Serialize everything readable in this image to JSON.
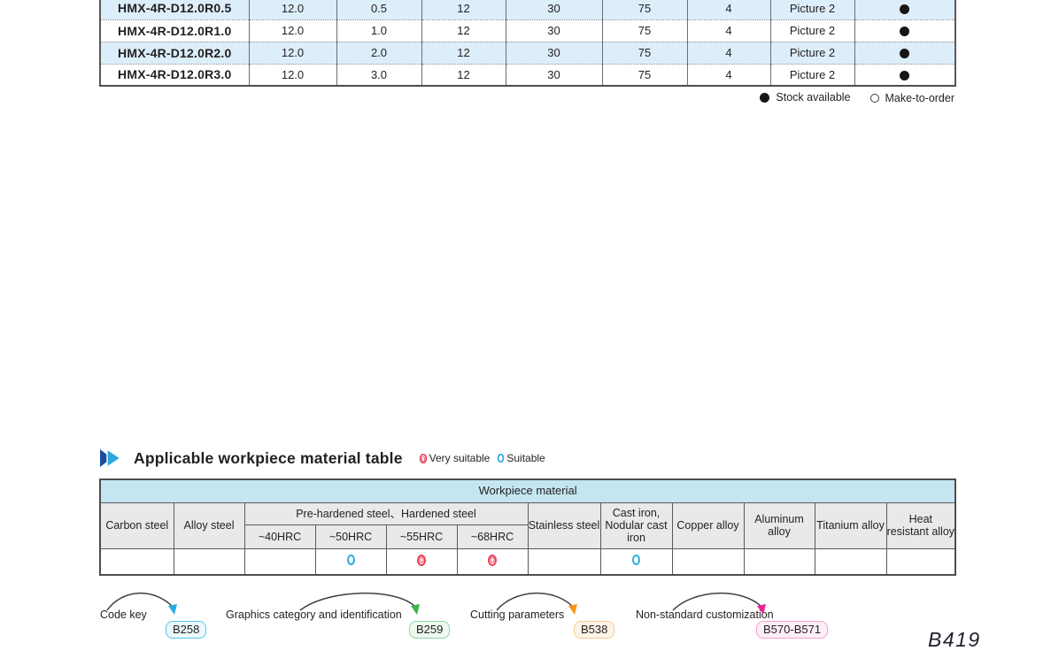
{
  "spec_table": {
    "rows": [
      {
        "model": "HMX-4R-D12.0R0.5",
        "values": [
          "12.0",
          "0.5",
          "12",
          "30",
          "75",
          "4",
          "Picture 2"
        ],
        "stock": "stock-available"
      },
      {
        "model": "HMX-4R-D12.0R1.0",
        "values": [
          "12.0",
          "1.0",
          "12",
          "30",
          "75",
          "4",
          "Picture 2"
        ],
        "stock": "stock-available"
      },
      {
        "model": "HMX-4R-D12.0R2.0",
        "values": [
          "12.0",
          "2.0",
          "12",
          "30",
          "75",
          "4",
          "Picture 2"
        ],
        "stock": "stock-available"
      },
      {
        "model": "HMX-4R-D12.0R3.0",
        "values": [
          "12.0",
          "3.0",
          "12",
          "30",
          "75",
          "4",
          "Picture 2"
        ],
        "stock": "stock-available"
      }
    ],
    "legend": [
      {
        "symbol": "stock-available",
        "label": "Stock available"
      },
      {
        "symbol": "make-to-order",
        "label": "Make-to-order"
      }
    ]
  },
  "material_section": {
    "title": "Applicable workpiece material table",
    "legend": [
      {
        "symbol": "very-suitable",
        "label": "Very suitable"
      },
      {
        "symbol": "suitable",
        "label": "Suitable"
      }
    ],
    "table": {
      "span_header": "Workpiece material",
      "group_header": "Pre-hardened steel、Hardened steel",
      "columns": [
        "Carbon steel",
        "Alloy steel",
        "~40HRC",
        "~50HRC",
        "~55HRC",
        "~68HRC",
        "Stainless steel",
        "Cast iron, Nodular cast iron",
        "Copper alloy",
        "Aluminum alloy",
        "Titanium alloy",
        "Heat resistant alloy"
      ],
      "marks": [
        "",
        "",
        "",
        "suitable",
        "very-suitable",
        "very-suitable",
        "",
        "suitable",
        "",
        "",
        "",
        ""
      ]
    }
  },
  "footer_links": [
    {
      "label": "Code key",
      "badge": "B258",
      "arrow_color": "#29abe2",
      "badge_border": "#56c5ed",
      "badge_bg": "#eaf8fd"
    },
    {
      "label": "Graphics category and identification",
      "badge": "B259",
      "arrow_color": "#39b54a",
      "badge_border": "#8fd3a0",
      "badge_bg": "#eef9f0"
    },
    {
      "label": "Cutting parameters",
      "badge": "B538",
      "arrow_color": "#f7941e",
      "badge_border": "#f9c98e",
      "badge_bg": "#fdf4e7"
    },
    {
      "label": "Non-standard customization",
      "badge": "B570-B571",
      "arrow_color": "#ec268f",
      "badge_border": "#f5a0c8",
      "badge_bg": "#fdeff7"
    }
  ],
  "page_number": "B419",
  "colors": {
    "row_alt": "#dceef9",
    "band_blue": "#c4e6f0",
    "header_gray": "#e9e9ea",
    "suitable": "#29abe2",
    "very_suitable": "#e94057"
  }
}
